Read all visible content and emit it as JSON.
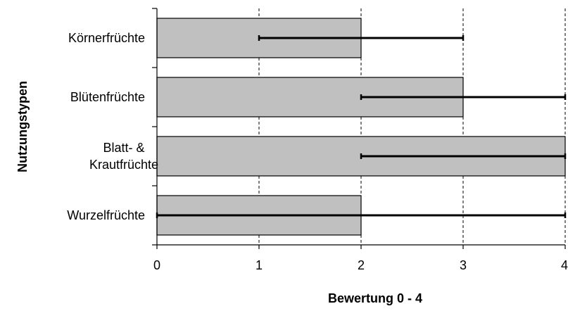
{
  "chart_data": {
    "type": "bar",
    "orientation": "horizontal",
    "categories": [
      [
        "Körnerfrüchte"
      ],
      [
        "Blütenfrüchte"
      ],
      [
        "Blatt- &",
        "Krautfrüchte"
      ],
      [
        "Wurzelfrüchte"
      ]
    ],
    "values": [
      2,
      3,
      4,
      2
    ],
    "error_ranges": [
      [
        1,
        3
      ],
      [
        2,
        4
      ],
      [
        2,
        4
      ],
      [
        0,
        4
      ]
    ],
    "xlabel": "Bewertung 0 - 4",
    "ylabel": "Nutzungstypen",
    "xlim": [
      0,
      4
    ],
    "xticks": [
      "0",
      "1",
      "2",
      "3",
      "4"
    ],
    "grid": "vertical dashed",
    "colors": {
      "bar_fill": "#c0c0c0",
      "bar_stroke": "#000000",
      "error_bar": "#000000",
      "grid": "#000000"
    }
  }
}
